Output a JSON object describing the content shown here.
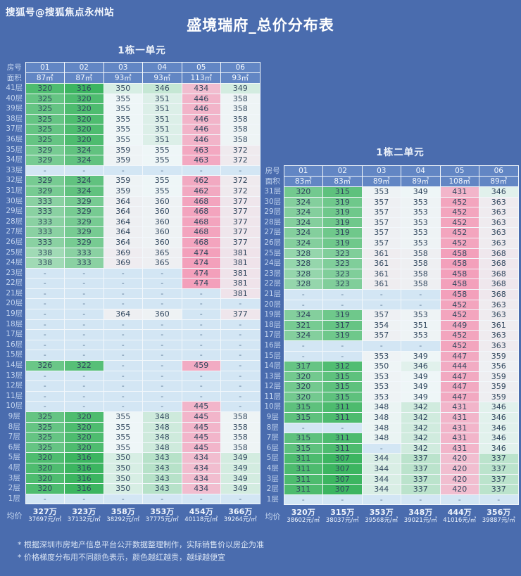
{
  "page": {
    "watermark": "搜狐号@搜狐焦点永州站",
    "title": "盛境瑞府_总价分布表",
    "background": "#4a6cae",
    "header_cell_color": "#6286c4",
    "footnotes": [
      "* 根据深圳市房地产信息平台公开数据整理制作，实际销售价以房企为准",
      "* 价格梯度分布用不同颜色表示，颜色越红越贵，越绿越便宜"
    ]
  },
  "labels": {
    "room": "房号",
    "area": "面积",
    "avg": "均价",
    "empty": "-"
  },
  "heat_colors": {
    "low": "#3cb560",
    "mid": "#eef6f7",
    "high": "#f3a0bb",
    "empty": "#d3e6f4"
  },
  "chart_data": [
    {
      "type": "heatmap",
      "title": "1栋一单元",
      "columns": [
        "01",
        "02",
        "03",
        "04",
        "05",
        "06"
      ],
      "areas": [
        "87㎡",
        "87㎡",
        "93㎡",
        "93㎡",
        "113㎡",
        "93㎡"
      ],
      "floors": [
        "41层",
        "40层",
        "39层",
        "38层",
        "37层",
        "36层",
        "35层",
        "34层",
        "33层",
        "32层",
        "31层",
        "30层",
        "29层",
        "28层",
        "27层",
        "26层",
        "25层",
        "24层",
        "23层",
        "22层",
        "21层",
        "20层",
        "19层",
        "18层",
        "17层",
        "16层",
        "15层",
        "14层",
        "13层",
        "12层",
        "11层",
        "10层",
        "9层",
        "8层",
        "7层",
        "6层",
        "5层",
        "4层",
        "3层",
        "2层",
        "1层"
      ],
      "rows": [
        [
          320,
          316,
          350,
          346,
          434,
          349
        ],
        [
          325,
          320,
          355,
          351,
          446,
          358
        ],
        [
          325,
          320,
          355,
          351,
          446,
          358
        ],
        [
          325,
          320,
          355,
          351,
          446,
          358
        ],
        [
          325,
          320,
          355,
          351,
          446,
          358
        ],
        [
          325,
          320,
          355,
          351,
          446,
          358
        ],
        [
          329,
          324,
          359,
          355,
          463,
          372
        ],
        [
          329,
          324,
          359,
          355,
          463,
          372
        ],
        [
          null,
          null,
          null,
          null,
          null,
          null
        ],
        [
          329,
          324,
          359,
          355,
          462,
          372
        ],
        [
          329,
          324,
          359,
          355,
          462,
          372
        ],
        [
          333,
          329,
          364,
          360,
          468,
          377
        ],
        [
          333,
          329,
          364,
          360,
          468,
          377
        ],
        [
          333,
          329,
          364,
          360,
          468,
          377
        ],
        [
          333,
          329,
          364,
          360,
          468,
          377
        ],
        [
          333,
          329,
          364,
          360,
          468,
          377
        ],
        [
          338,
          333,
          369,
          365,
          474,
          381
        ],
        [
          338,
          333,
          369,
          365,
          474,
          381
        ],
        [
          null,
          null,
          null,
          null,
          474,
          381
        ],
        [
          null,
          null,
          null,
          null,
          474,
          381
        ],
        [
          null,
          null,
          null,
          null,
          null,
          381
        ],
        [
          null,
          null,
          null,
          null,
          null,
          null
        ],
        [
          null,
          null,
          364,
          360,
          null,
          377
        ],
        [
          null,
          null,
          null,
          null,
          null,
          null
        ],
        [
          null,
          null,
          null,
          null,
          null,
          null
        ],
        [
          null,
          null,
          null,
          null,
          null,
          null
        ],
        [
          null,
          null,
          null,
          null,
          null,
          null
        ],
        [
          326,
          322,
          null,
          null,
          459,
          null
        ],
        [
          null,
          null,
          null,
          null,
          null,
          null
        ],
        [
          null,
          null,
          null,
          null,
          null,
          null
        ],
        [
          null,
          null,
          null,
          null,
          null,
          null
        ],
        [
          null,
          null,
          null,
          null,
          445,
          null
        ],
        [
          325,
          320,
          355,
          348,
          445,
          358
        ],
        [
          325,
          320,
          355,
          348,
          445,
          358
        ],
        [
          325,
          320,
          355,
          348,
          445,
          358
        ],
        [
          325,
          320,
          355,
          348,
          445,
          358
        ],
        [
          320,
          316,
          350,
          343,
          434,
          349
        ],
        [
          320,
          316,
          350,
          343,
          434,
          349
        ],
        [
          320,
          316,
          350,
          343,
          434,
          349
        ],
        [
          320,
          316,
          350,
          343,
          434,
          349
        ],
        [
          null,
          null,
          null,
          null,
          null,
          null
        ]
      ],
      "avg_totals": [
        "327万",
        "323万",
        "358万",
        "353万",
        "454万",
        "366万"
      ],
      "avg_units": [
        "37697元/㎡",
        "37132元/㎡",
        "38292元/㎡",
        "37775元/㎡",
        "40118元/㎡",
        "39264元/㎡"
      ]
    },
    {
      "type": "heatmap",
      "title": "1栋二单元",
      "columns": [
        "01",
        "02",
        "03",
        "04",
        "05",
        "06"
      ],
      "areas": [
        "83㎡",
        "83㎡",
        "89㎡",
        "89㎡",
        "108㎡",
        "89㎡"
      ],
      "floors": [
        "31层",
        "30层",
        "29层",
        "28层",
        "27层",
        "26层",
        "25层",
        "24层",
        "23层",
        "22层",
        "21层",
        "20层",
        "19层",
        "18层",
        "17层",
        "16层",
        "15层",
        "14层",
        "13层",
        "12层",
        "11层",
        "10层",
        "9层",
        "8层",
        "7层",
        "6层",
        "5层",
        "4层",
        "3层",
        "2层",
        "1层"
      ],
      "rows": [
        [
          320,
          315,
          353,
          349,
          431,
          346
        ],
        [
          324,
          319,
          357,
          353,
          452,
          363
        ],
        [
          324,
          319,
          357,
          353,
          452,
          363
        ],
        [
          324,
          319,
          357,
          353,
          452,
          363
        ],
        [
          324,
          319,
          357,
          353,
          452,
          363
        ],
        [
          324,
          319,
          357,
          353,
          452,
          363
        ],
        [
          328,
          323,
          361,
          358,
          458,
          368
        ],
        [
          328,
          323,
          361,
          358,
          458,
          368
        ],
        [
          328,
          323,
          361,
          358,
          458,
          368
        ],
        [
          328,
          323,
          361,
          358,
          458,
          368
        ],
        [
          null,
          null,
          null,
          null,
          458,
          368
        ],
        [
          null,
          null,
          null,
          null,
          452,
          363
        ],
        [
          324,
          319,
          357,
          353,
          452,
          363
        ],
        [
          321,
          317,
          354,
          351,
          449,
          361
        ],
        [
          324,
          319,
          357,
          353,
          452,
          363
        ],
        [
          null,
          null,
          null,
          null,
          452,
          363
        ],
        [
          null,
          null,
          353,
          349,
          447,
          359
        ],
        [
          317,
          312,
          350,
          346,
          444,
          356
        ],
        [
          320,
          315,
          353,
          349,
          447,
          359
        ],
        [
          320,
          315,
          353,
          349,
          447,
          359
        ],
        [
          320,
          315,
          353,
          349,
          447,
          359
        ],
        [
          315,
          311,
          348,
          342,
          431,
          346
        ],
        [
          315,
          311,
          348,
          342,
          431,
          346
        ],
        [
          null,
          null,
          348,
          342,
          431,
          346
        ],
        [
          315,
          311,
          348,
          342,
          431,
          346
        ],
        [
          315,
          311,
          null,
          342,
          431,
          346
        ],
        [
          311,
          307,
          344,
          337,
          420,
          337
        ],
        [
          311,
          307,
          344,
          337,
          420,
          337
        ],
        [
          311,
          307,
          344,
          337,
          420,
          337
        ],
        [
          311,
          307,
          344,
          337,
          420,
          337
        ],
        [
          null,
          null,
          null,
          null,
          null,
          null
        ]
      ],
      "avg_totals": [
        "320万",
        "315万",
        "353万",
        "348万",
        "444万",
        "356万"
      ],
      "avg_units": [
        "38602元/㎡",
        "38037元/㎡",
        "39568元/㎡",
        "39021元/㎡",
        "41016元/㎡",
        "39887元/㎡"
      ]
    }
  ]
}
